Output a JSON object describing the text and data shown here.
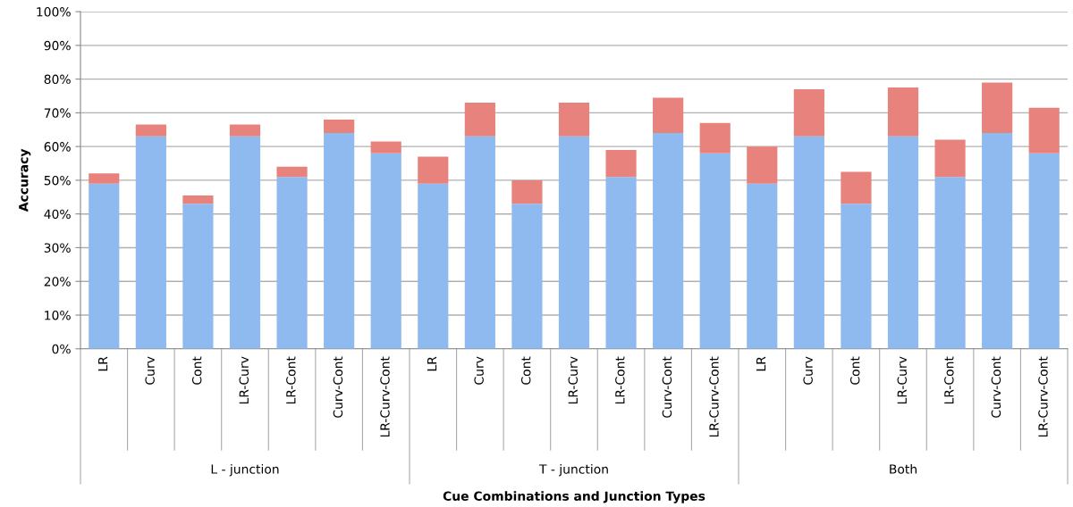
{
  "chart_data": {
    "type": "bar",
    "stacked": true,
    "xlabel": "Cue Combinations and Junction Types",
    "ylabel": "Accuracy",
    "categories": [
      "LR",
      "Curv",
      "Cont",
      "LR-Curv",
      "LR-Cont",
      "Curv-Cont",
      "LR-Curv-Cont",
      "LR",
      "Curv",
      "Cont",
      "LR-Curv",
      "LR-Cont",
      "Curv-Cont",
      "LR-Curv-Cont",
      "LR",
      "Curv",
      "Cont",
      "LR-Curv",
      "LR-Cont",
      "Curv-Cont",
      "LR-Curv-Cont"
    ],
    "series": [
      {
        "color": "#8fbaf0",
        "values": [
          49,
          63,
          43,
          63,
          51,
          64,
          58,
          49,
          63,
          43,
          63,
          51,
          64,
          58,
          49,
          63,
          43,
          63,
          51,
          64,
          58
        ]
      },
      {
        "color": "#e8827c",
        "values": [
          3,
          3.5,
          2.5,
          3.5,
          3,
          4,
          3.5,
          8,
          10,
          7,
          10,
          8,
          10.5,
          9,
          11,
          14,
          9.5,
          14.5,
          11,
          15,
          13.5
        ]
      }
    ],
    "annotations": [
      "L - junction",
      "T - junction",
      "Both"
    ],
    "ylim": [
      0,
      100
    ],
    "yticks": [
      {
        "value": 0,
        "label": "0%"
      },
      {
        "value": 10,
        "label": "10%"
      },
      {
        "value": 20,
        "label": "20%"
      },
      {
        "value": 30,
        "label": "30%"
      },
      {
        "value": 40,
        "label": "40%"
      },
      {
        "value": 50,
        "label": "50%"
      },
      {
        "value": 60,
        "label": "60%"
      },
      {
        "value": 70,
        "label": "70%"
      },
      {
        "value": 80,
        "label": "80%"
      },
      {
        "value": 90,
        "label": "90%"
      },
      {
        "value": 100,
        "label": "100%"
      }
    ],
    "grid": "y"
  }
}
